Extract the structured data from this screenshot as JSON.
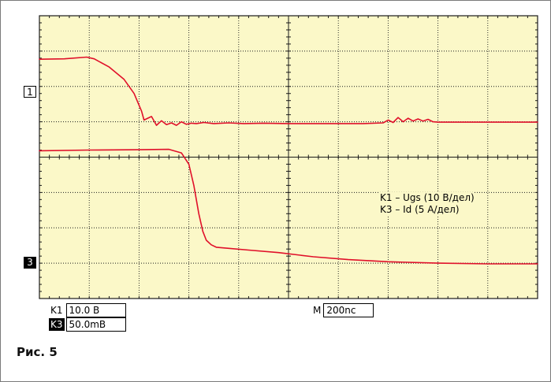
{
  "figure": {
    "caption": "Рис. 5"
  },
  "channels": {
    "ch1": {
      "marker": "1",
      "label": "K1",
      "scale": "10.0 В"
    },
    "ch3": {
      "marker": "3",
      "label": "K3",
      "scale": "50.0mВ"
    }
  },
  "timebase": {
    "label": "M",
    "value": "200nc"
  },
  "legend": {
    "lines": [
      "K1 – Ugs (10 В/дел)",
      "K3 – Id (5 А/дел)"
    ]
  },
  "colors": {
    "background": "#fbf8c8",
    "trace": "#e0102a",
    "grid": "#1a1a1a"
  },
  "chart_data": {
    "type": "line",
    "title": "",
    "xlabel": "",
    "ylabel": "",
    "grid": true,
    "x_divisions": 10,
    "y_divisions": 8,
    "xlim": [
      0,
      10
    ],
    "ylim": [
      -4,
      4
    ],
    "series": [
      {
        "name": "K1 – Ugs (10 В/дел)",
        "x": [
          0,
          0.5,
          0.95,
          1.1,
          1.4,
          1.7,
          1.9,
          2.05,
          2.1,
          2.25,
          2.35,
          2.45,
          2.55,
          2.65,
          2.75,
          2.85,
          2.95,
          3.05,
          3.15,
          3.3,
          3.5,
          3.8,
          4.1,
          4.5,
          5.0,
          5.5,
          6.0,
          6.5,
          6.9,
          7.0,
          7.1,
          7.2,
          7.3,
          7.4,
          7.5,
          7.6,
          7.7,
          7.8,
          7.9,
          8.0,
          8.2,
          9.0,
          10.0
        ],
        "y": [
          2.77,
          2.78,
          2.83,
          2.78,
          2.55,
          2.2,
          1.8,
          1.3,
          1.05,
          1.15,
          0.9,
          1.03,
          0.92,
          0.97,
          0.9,
          1.0,
          0.93,
          0.96,
          0.95,
          0.98,
          0.95,
          0.97,
          0.95,
          0.96,
          0.95,
          0.95,
          0.95,
          0.95,
          0.97,
          1.05,
          0.98,
          1.12,
          1.0,
          1.1,
          1.02,
          1.08,
          1.02,
          1.07,
          1.0,
          0.99,
          0.99,
          0.99,
          0.99
        ]
      },
      {
        "name": "K3 – Id (5 А/дел)",
        "x": [
          0,
          1.0,
          2.0,
          2.6,
          2.85,
          3.0,
          3.1,
          3.2,
          3.28,
          3.35,
          3.45,
          3.55,
          3.8,
          4.2,
          4.8,
          5.5,
          6.2,
          7.0,
          8.0,
          9.0,
          10.0
        ],
        "y": [
          0.18,
          0.2,
          0.21,
          0.22,
          0.12,
          -0.2,
          -0.8,
          -1.6,
          -2.1,
          -2.35,
          -2.48,
          -2.55,
          -2.58,
          -2.63,
          -2.7,
          -2.82,
          -2.9,
          -2.96,
          -3.0,
          -3.02,
          -3.02
        ]
      }
    ]
  }
}
